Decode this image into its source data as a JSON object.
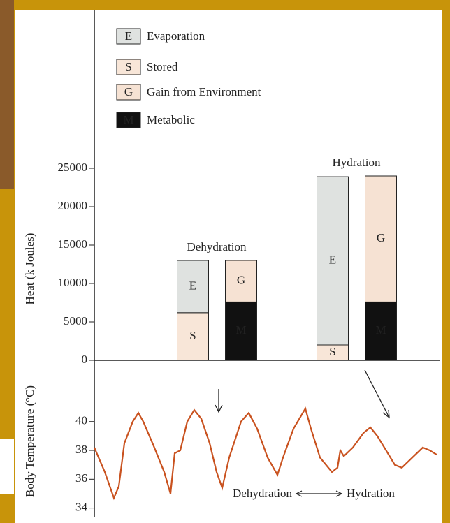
{
  "chart_data": [
    {
      "type": "bar",
      "stacked": true,
      "ylabel": "Heat (k Joules)",
      "categories": [
        "Dehydration",
        "Hydration"
      ],
      "series": [
        {
          "key": "E",
          "name": "Evaporation",
          "color": "#dfe2e0",
          "stack": "left",
          "values": [
            6800,
            21900
          ]
        },
        {
          "key": "S",
          "name": "Stored",
          "color": "#f8e6d8",
          "stack": "left",
          "values": [
            6200,
            2000
          ]
        },
        {
          "key": "G",
          "name": "Gain from Environment",
          "color": "#f6e2d3",
          "stack": "right",
          "values": [
            5400,
            16400
          ]
        },
        {
          "key": "M",
          "name": "Metabolic",
          "color": "#111111",
          "stack": "right",
          "values": [
            7600,
            7600
          ]
        }
      ],
      "ylim": [
        0,
        25000
      ],
      "yticks": [
        0,
        5000,
        10000,
        15000,
        20000,
        25000
      ]
    },
    {
      "type": "line",
      "ylabel": "Body Temperature (°C)",
      "x": [
        0,
        15,
        28,
        35,
        43,
        55,
        63,
        70,
        85,
        100,
        109,
        115,
        123,
        133,
        143,
        153,
        165,
        175,
        183,
        193,
        210,
        221,
        233,
        248,
        262,
        270,
        285,
        302,
        310,
        323,
        340,
        348,
        352,
        357,
        370,
        385,
        395,
        405,
        420,
        430,
        440,
        455,
        470,
        480,
        490
      ],
      "series": [
        {
          "name": null,
          "color": "#c9521f",
          "values": [
            38.2,
            36.5,
            34.7,
            35.5,
            38.5,
            40.0,
            40.6,
            40.0,
            38.3,
            36.5,
            35.0,
            37.8,
            38.0,
            40.0,
            40.8,
            40.2,
            38.5,
            36.5,
            35.4,
            37.5,
            40.0,
            40.6,
            39.5,
            37.5,
            36.3,
            37.5,
            39.5,
            40.9,
            39.5,
            37.5,
            36.5,
            36.8,
            38.0,
            37.6,
            38.2,
            39.2,
            39.6,
            39.0,
            37.8,
            37.0,
            36.8,
            37.5,
            38.2,
            38.0,
            37.7
          ]
        }
      ],
      "xlim": [
        0,
        490
      ],
      "ylim": [
        33.4,
        44.2
      ],
      "yticks": [
        34,
        36,
        38,
        40
      ],
      "annotations": [
        "Dehydration",
        "Hydration"
      ]
    }
  ]
}
